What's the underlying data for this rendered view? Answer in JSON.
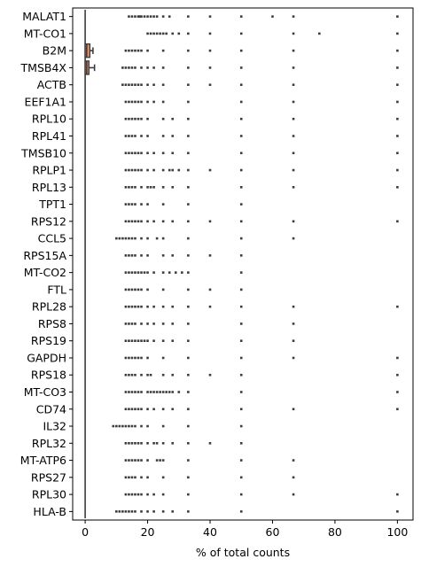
{
  "chart_data": {
    "type": "boxplot",
    "orientation": "horizontal",
    "title": "",
    "xlabel": "% of total counts",
    "ylabel": "",
    "xlim": [
      -4,
      105
    ],
    "xticks": [
      0,
      20,
      40,
      60,
      80,
      100
    ],
    "grid": false,
    "colors": {
      "box_fill": "#f0936b",
      "line": "#3d3d3d",
      "outlier": "#3d3d3d",
      "frame": "#000000"
    },
    "genes": [
      {
        "name": "MALAT1",
        "box": [
          0,
          0,
          0
        ],
        "whisker": 0,
        "outliers": [
          14,
          15,
          16,
          17,
          17.5,
          18,
          19,
          20,
          21,
          22,
          23,
          25,
          27,
          33,
          40,
          50,
          60,
          66.7,
          100
        ]
      },
      {
        "name": "MT-CO1",
        "box": [
          0,
          0,
          0
        ],
        "whisker": 0,
        "outliers": [
          20,
          21,
          22,
          23,
          24,
          25,
          26,
          28,
          30,
          33,
          40,
          50,
          66.7,
          75,
          100
        ]
      },
      {
        "name": "B2M",
        "box": [
          0,
          0.5,
          1.5
        ],
        "whisker": 2.5,
        "outliers": [
          13,
          14,
          15,
          16,
          17,
          18,
          20,
          25,
          33,
          40,
          50,
          66.7,
          100
        ]
      },
      {
        "name": "TMSB4X",
        "box": [
          0,
          0.5,
          1.2
        ],
        "whisker": 3,
        "outliers": [
          12,
          13,
          14,
          15,
          16,
          18,
          20,
          22,
          25,
          33,
          40,
          50,
          66.7,
          100
        ]
      },
      {
        "name": "ACTB",
        "box": [
          0,
          0,
          0
        ],
        "whisker": 0,
        "outliers": [
          12,
          13,
          14,
          15,
          16,
          17,
          18,
          20,
          22,
          25,
          33,
          40,
          50,
          66.7,
          100
        ]
      },
      {
        "name": "EEF1A1",
        "box": [
          0,
          0,
          0
        ],
        "whisker": 0,
        "outliers": [
          13,
          14,
          15,
          16,
          17,
          18,
          20,
          22,
          25,
          33,
          50,
          66.7,
          100
        ]
      },
      {
        "name": "RPL10",
        "box": [
          0,
          0,
          0
        ],
        "whisker": 0,
        "outliers": [
          13,
          14,
          15,
          16,
          17,
          18,
          20,
          25,
          28,
          33,
          50,
          66.7,
          100
        ]
      },
      {
        "name": "RPL41",
        "box": [
          0,
          0,
          0
        ],
        "whisker": 0,
        "outliers": [
          13,
          14,
          15,
          16,
          18,
          20,
          25,
          28,
          33,
          50,
          66.7,
          100
        ]
      },
      {
        "name": "TMSB10",
        "box": [
          0,
          0,
          0
        ],
        "whisker": 0,
        "outliers": [
          13,
          14,
          15,
          16,
          17,
          18,
          20,
          22,
          25,
          28,
          33,
          50,
          66.7,
          100
        ]
      },
      {
        "name": "RPLP1",
        "box": [
          0,
          0,
          0
        ],
        "whisker": 0,
        "outliers": [
          13,
          14,
          15,
          16,
          17,
          18,
          20,
          22,
          25,
          27,
          28,
          30,
          33,
          40,
          50,
          66.7,
          100
        ]
      },
      {
        "name": "RPL13",
        "box": [
          0,
          0,
          0
        ],
        "whisker": 0,
        "outliers": [
          13,
          14,
          15,
          16,
          18,
          20,
          21,
          22,
          25,
          28,
          33,
          50,
          66.7,
          100
        ]
      },
      {
        "name": "TPT1",
        "box": [
          0,
          0,
          0
        ],
        "whisker": 0,
        "outliers": [
          13,
          14,
          15,
          16,
          18,
          20,
          25,
          33,
          50
        ]
      },
      {
        "name": "RPS12",
        "box": [
          0,
          0,
          0
        ],
        "whisker": 0,
        "outliers": [
          13,
          14,
          15,
          16,
          17,
          18,
          20,
          22,
          25,
          28,
          33,
          40,
          50,
          66.7,
          100
        ]
      },
      {
        "name": "CCL5",
        "box": [
          0,
          0,
          0
        ],
        "whisker": 0,
        "outliers": [
          10,
          11,
          12,
          13,
          14,
          15,
          16,
          18,
          20,
          23,
          25,
          33,
          50,
          66.7
        ]
      },
      {
        "name": "RPS15A",
        "box": [
          0,
          0,
          0
        ],
        "whisker": 0,
        "outliers": [
          13,
          14,
          15,
          16,
          18,
          20,
          25,
          28,
          33,
          40,
          50
        ]
      },
      {
        "name": "MT-CO2",
        "box": [
          0,
          0,
          0
        ],
        "whisker": 0,
        "outliers": [
          13,
          14,
          15,
          16,
          17,
          18,
          19,
          20,
          22,
          25,
          27,
          29,
          31,
          33,
          50
        ]
      },
      {
        "name": "FTL",
        "box": [
          0,
          0,
          0
        ],
        "whisker": 0,
        "outliers": [
          13,
          14,
          15,
          16,
          17,
          18,
          20,
          25,
          33,
          40,
          50
        ]
      },
      {
        "name": "RPL28",
        "box": [
          0,
          0,
          0
        ],
        "whisker": 0,
        "outliers": [
          13,
          14,
          15,
          16,
          17,
          18,
          20,
          22,
          25,
          28,
          33,
          40,
          50,
          66.7,
          100
        ]
      },
      {
        "name": "RPS8",
        "box": [
          0,
          0,
          0
        ],
        "whisker": 0,
        "outliers": [
          13,
          14,
          15,
          16,
          18,
          20,
          22,
          25,
          28,
          33,
          50,
          66.7
        ]
      },
      {
        "name": "RPS19",
        "box": [
          0,
          0,
          0
        ],
        "whisker": 0,
        "outliers": [
          13,
          14,
          15,
          16,
          17,
          18,
          19,
          20,
          22,
          25,
          28,
          33,
          50,
          66.7
        ]
      },
      {
        "name": "GAPDH",
        "box": [
          0,
          0,
          0
        ],
        "whisker": 0,
        "outliers": [
          13,
          14,
          15,
          16,
          17,
          18,
          20,
          25,
          33,
          50,
          66.7,
          100
        ]
      },
      {
        "name": "RPS18",
        "box": [
          0,
          0,
          0
        ],
        "whisker": 0,
        "outliers": [
          13,
          14,
          15,
          16,
          18,
          20,
          21,
          25,
          28,
          33,
          40,
          50,
          100
        ]
      },
      {
        "name": "MT-CO3",
        "box": [
          0,
          0,
          0
        ],
        "whisker": 0,
        "outliers": [
          13,
          14,
          15,
          16,
          17,
          18,
          20,
          21,
          22,
          23,
          24,
          25,
          26,
          27,
          28,
          30,
          33,
          50,
          100
        ]
      },
      {
        "name": "CD74",
        "box": [
          0,
          0,
          0
        ],
        "whisker": 0,
        "outliers": [
          13,
          14,
          15,
          16,
          17,
          18,
          20,
          22,
          25,
          28,
          33,
          50,
          66.7,
          100
        ]
      },
      {
        "name": "IL32",
        "box": [
          0,
          0,
          0
        ],
        "whisker": 0,
        "outliers": [
          9,
          10,
          11,
          12,
          13,
          14,
          15,
          16,
          18,
          20,
          25,
          33,
          50
        ]
      },
      {
        "name": "RPL32",
        "box": [
          0,
          0,
          0
        ],
        "whisker": 0,
        "outliers": [
          13,
          14,
          15,
          16,
          17,
          18,
          20,
          22,
          23,
          25,
          28,
          33,
          40,
          50
        ]
      },
      {
        "name": "MT-ATP6",
        "box": [
          0,
          0,
          0
        ],
        "whisker": 0,
        "outliers": [
          13,
          14,
          15,
          16,
          17,
          18,
          20,
          23,
          24,
          25,
          33,
          50,
          66.7
        ]
      },
      {
        "name": "RPS27",
        "box": [
          0,
          0,
          0
        ],
        "whisker": 0,
        "outliers": [
          13,
          14,
          15,
          16,
          18,
          20,
          25,
          33,
          50,
          66.7
        ]
      },
      {
        "name": "RPL30",
        "box": [
          0,
          0,
          0
        ],
        "whisker": 0,
        "outliers": [
          13,
          14,
          15,
          16,
          17,
          18,
          20,
          22,
          25,
          33,
          50,
          66.7,
          100
        ]
      },
      {
        "name": "HLA-B",
        "box": [
          0,
          0,
          0
        ],
        "whisker": 0,
        "outliers": [
          10,
          11,
          12,
          13,
          14,
          15,
          16,
          18,
          20,
          22,
          25,
          28,
          33,
          50,
          100
        ]
      }
    ]
  }
}
